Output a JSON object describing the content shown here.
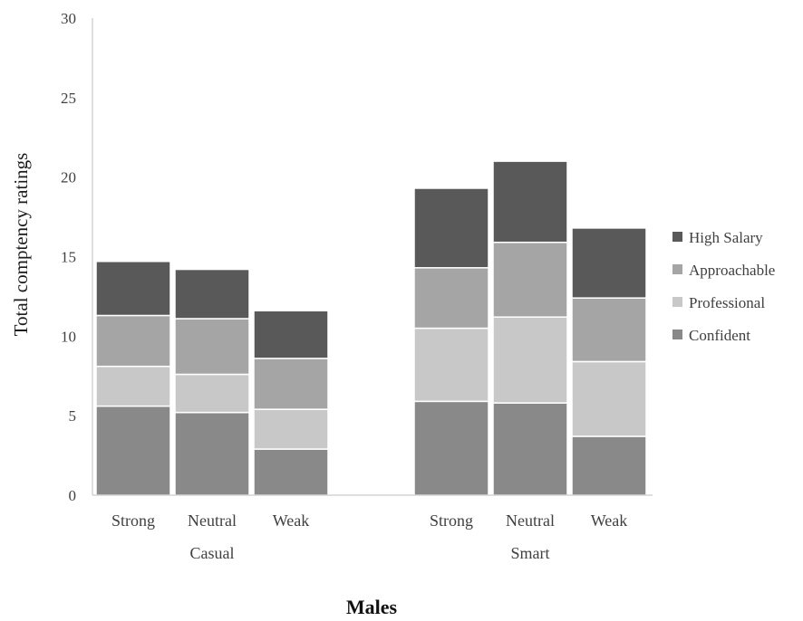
{
  "chart_data": {
    "type": "bar",
    "stacked": true,
    "title": "Males",
    "ylabel": "Total comptency ratings",
    "ylim": [
      0,
      30
    ],
    "yticks": [
      0,
      5,
      10,
      15,
      20,
      25,
      30
    ],
    "grid": false,
    "legend_position": "right",
    "groups": [
      {
        "label": "Casual",
        "categories": [
          "Strong",
          "Neutral",
          "Weak"
        ]
      },
      {
        "label": "Smart",
        "categories": [
          "Strong",
          "Neutral",
          "Weak"
        ]
      }
    ],
    "series": [
      {
        "name": "Confident",
        "color": "#898989",
        "values": [
          5.6,
          5.2,
          2.9,
          5.9,
          5.8,
          3.7
        ]
      },
      {
        "name": "Professional",
        "color": "#c8c8c8",
        "values": [
          2.5,
          2.4,
          2.5,
          4.6,
          5.4,
          4.7
        ]
      },
      {
        "name": "Approachable",
        "color": "#a5a5a5",
        "values": [
          3.2,
          3.5,
          3.2,
          3.8,
          4.7,
          4.0
        ]
      },
      {
        "name": "High Salary",
        "color": "#595959",
        "values": [
          3.4,
          3.1,
          3.0,
          5.0,
          5.1,
          4.4
        ]
      }
    ],
    "legend_order": [
      "High Salary",
      "Approachable",
      "Professional",
      "Confident"
    ]
  }
}
